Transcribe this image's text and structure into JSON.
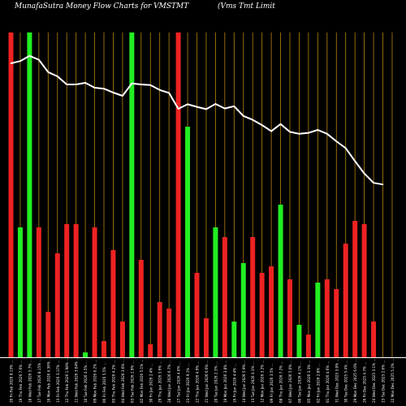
{
  "header": {
    "title_left": "MunafaSutra  Money Flow  Charts for VMSTMT",
    "title_right": "(Vms Tmt Limit"
  },
  "chart_data": {
    "type": "bar",
    "title": "MunafaSutra  Money Flow  Charts for VMSTMT",
    "background": "#000000",
    "colors": {
      "up": "#22ee22",
      "down": "#ee2222",
      "line": "#ffffff",
      "grid": "#b8860b",
      "text": "#ffffff"
    },
    "ylim": [
      0,
      100
    ],
    "grid": "vertical",
    "categories": [
      "20 Fri Feb 2026 8.13% ...",
      "19 Thu Feb 2026 7.6% ...",
      "18 Wed Feb 2026 5.7% ...",
      "17 Tue Feb 2026 8.15% ...",
      "16 Mon Feb 2026 4.36% ...",
      "13 Fri Feb 2026 3.17% ...",
      "12 Thu Feb 2026 1.98% ...",
      "11 Wed Feb 2026 3.04% ...",
      "10 Tue Feb 2026 4.5% ...",
      "09 Mon Feb 2026 6.2% ...",
      "06 Fri Feb 2026 5.5% ...",
      "05 Thu Feb 2026 4.2% ...",
      "04 Wed Feb 2026 3.6% ...",
      "03 Tue Feb 2026 2.9% ...",
      "02 Mon Feb 2026 5.1% ...",
      "30 Fri Jan 2026 2.4% ...",
      "29 Thu Jan 2026 3.6% ...",
      "28 Wed Jan 2026 6.7% ...",
      "27 Tue Jan 2026 4.0% ...",
      "23 Fri Jan 2026 9.1% ...",
      "22 Thu Jan 2026 4.9% ...",
      "21 Wed Jan 2026 6.6% ...",
      "20 Tue Jan 2026 2.3% ...",
      "19 Mon Jan 2026 3.8% ...",
      "16 Fri Jan 2026 4.4% ...",
      "14 Wed Jan 2026 5.9% ...",
      "13 Tue Jan 2026 4.3% ...",
      "12 Mon Jan 2026 3.2% ...",
      "09 Fri Jan 2026 3.5% ...",
      "08 Thu Jan 2026 7.2% ...",
      "07 Wed Jan 2026 5.0% ...",
      "06 Tue Jan 2026 4.1% ...",
      "05 Mon Jan 2026 3.3% ...",
      "02 Fri Jan 2026 2.8% ...",
      "01 Thu Jan 2026 4.6% ...",
      "31 Wed Dec 2025 3.9% ...",
      "30 Tue Dec 2025 5.4% ...",
      "29 Mon Dec 2025 6.0% ...",
      "26 Fri Dec 2025 4.7% ...",
      "24 Wed Dec 2025 3.1% ...",
      "23 Tue Dec 2025 2.6% ...",
      "22 Mon Dec 2025 5.2% ..."
    ],
    "series": [
      {
        "kind": "bars",
        "values": [
          100,
          40,
          100,
          40,
          14,
          32,
          41,
          41,
          1.5,
          40,
          5,
          33,
          11,
          100,
          30,
          4,
          17,
          15,
          100,
          71,
          26,
          12,
          40,
          37,
          11,
          29,
          37,
          26,
          28,
          47,
          24,
          10,
          7,
          23,
          24,
          21,
          35,
          42,
          41,
          11,
          0,
          0
        ],
        "colors": [
          "down",
          "up",
          "up",
          "down",
          "down",
          "down",
          "down",
          "down",
          "up",
          "down",
          "down",
          "down",
          "down",
          "up",
          "down",
          "down",
          "down",
          "down",
          "down",
          "up",
          "down",
          "down",
          "up",
          "down",
          "up",
          "up",
          "down",
          "down",
          "down",
          "up",
          "down",
          "up",
          "down",
          "up",
          "down",
          "down",
          "down",
          "down",
          "down",
          "down",
          "down",
          "down"
        ]
      },
      {
        "kind": "line",
        "values": [
          90.5,
          91.2,
          92.8,
          91.6,
          87.8,
          86.5,
          84.0,
          84.0,
          84.5,
          83.0,
          82.7,
          81.5,
          80.5,
          84.3,
          84.0,
          83.8,
          82.3,
          81.4,
          76.5,
          77.9,
          77.1,
          76.4,
          78.0,
          76.6,
          77.3,
          74.3,
          73.1,
          71.5,
          69.6,
          71.8,
          69.4,
          68.8,
          69.1,
          70.0,
          68.8,
          66.5,
          64.4,
          60.4,
          56.6,
          53.7,
          53.2,
          0
        ]
      }
    ]
  }
}
